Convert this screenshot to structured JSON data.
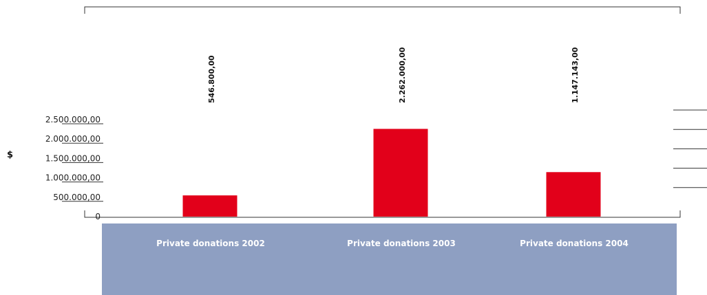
{
  "chart_data": {
    "type": "bar",
    "categories": [
      "Private donations 2002",
      "Private donations 2003",
      "Private donations 2004"
    ],
    "values": [
      546800,
      2262000,
      1147143
    ],
    "value_labels": [
      "546.800,00",
      "2.262.000,00",
      "1.147.143,00"
    ],
    "ylabel": "$",
    "yticks": [
      {
        "value": 0,
        "label": "0"
      },
      {
        "value": 500000,
        "label": "500.000,00"
      },
      {
        "value": 1000000,
        "label": "1.000.000,00"
      },
      {
        "value": 1500000,
        "label": "1.500.000,00"
      },
      {
        "value": 2000000,
        "label": "2.000.000,00"
      },
      {
        "value": 2500000,
        "label": "2.500.000,00"
      }
    ],
    "ylim": [
      0,
      2500000
    ],
    "grid": false,
    "colors": {
      "bar": "#e2001a",
      "category_band": "#8e9fc2",
      "category_text": "#ffffff"
    }
  }
}
